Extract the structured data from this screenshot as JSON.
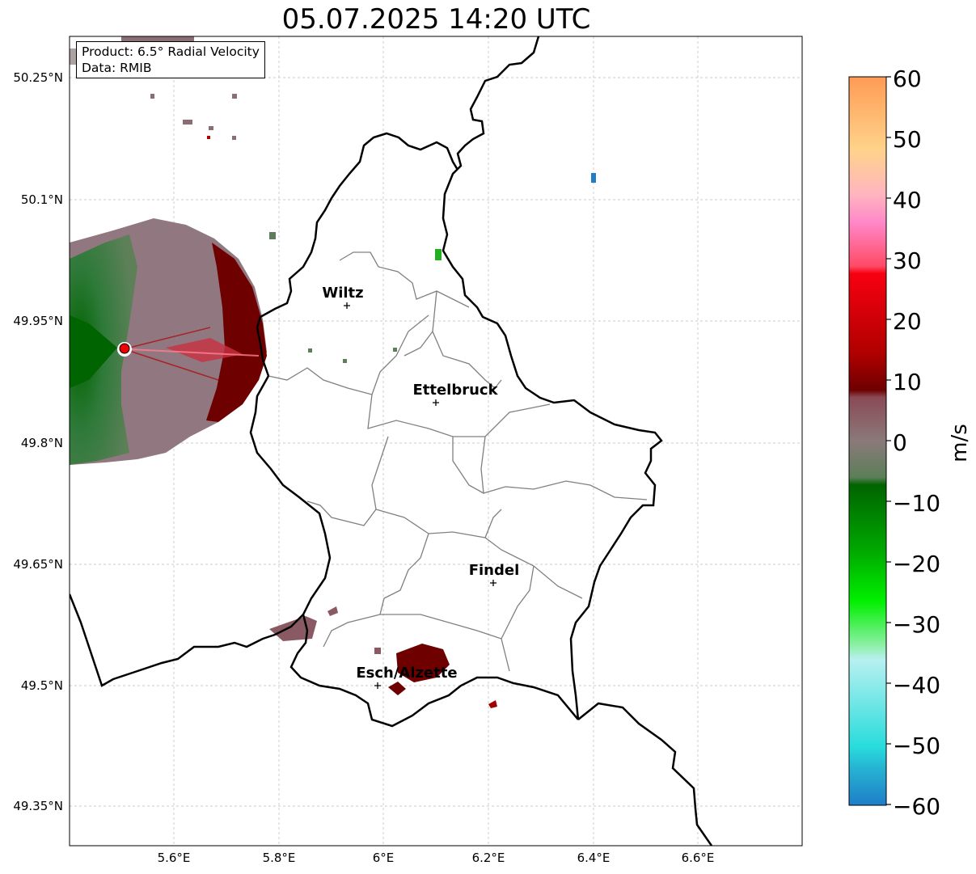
{
  "title": "05.07.2025 14:20 UTC",
  "info": {
    "product_line": "Product: 6.5° Radial Velocity",
    "data_line": "Data: RMIB"
  },
  "axes": {
    "lat_ticks": [
      "50.25°N",
      "50.1°N",
      "49.95°N",
      "49.8°N",
      "49.65°N",
      "49.5°N",
      "49.35°N"
    ],
    "lon_ticks": [
      "5.6°E",
      "5.8°E",
      "6°E",
      "6.2°E",
      "6.4°E",
      "6.6°E"
    ]
  },
  "cities": [
    "Wiltz",
    "Ettelbruck",
    "Findel",
    "Esch/Alzette"
  ],
  "colorbar": {
    "unit": "m/s",
    "ticks": [
      "60",
      "50",
      "40",
      "30",
      "20",
      "10",
      "0",
      "−10",
      "−20",
      "−30",
      "−40",
      "−50",
      "−60"
    ],
    "range": [
      -60,
      60
    ]
  },
  "colors": {
    "border": "#000000",
    "canton_lines": "#808080",
    "grid": "#bbbbbb",
    "radar_site": "#ee0000"
  }
}
